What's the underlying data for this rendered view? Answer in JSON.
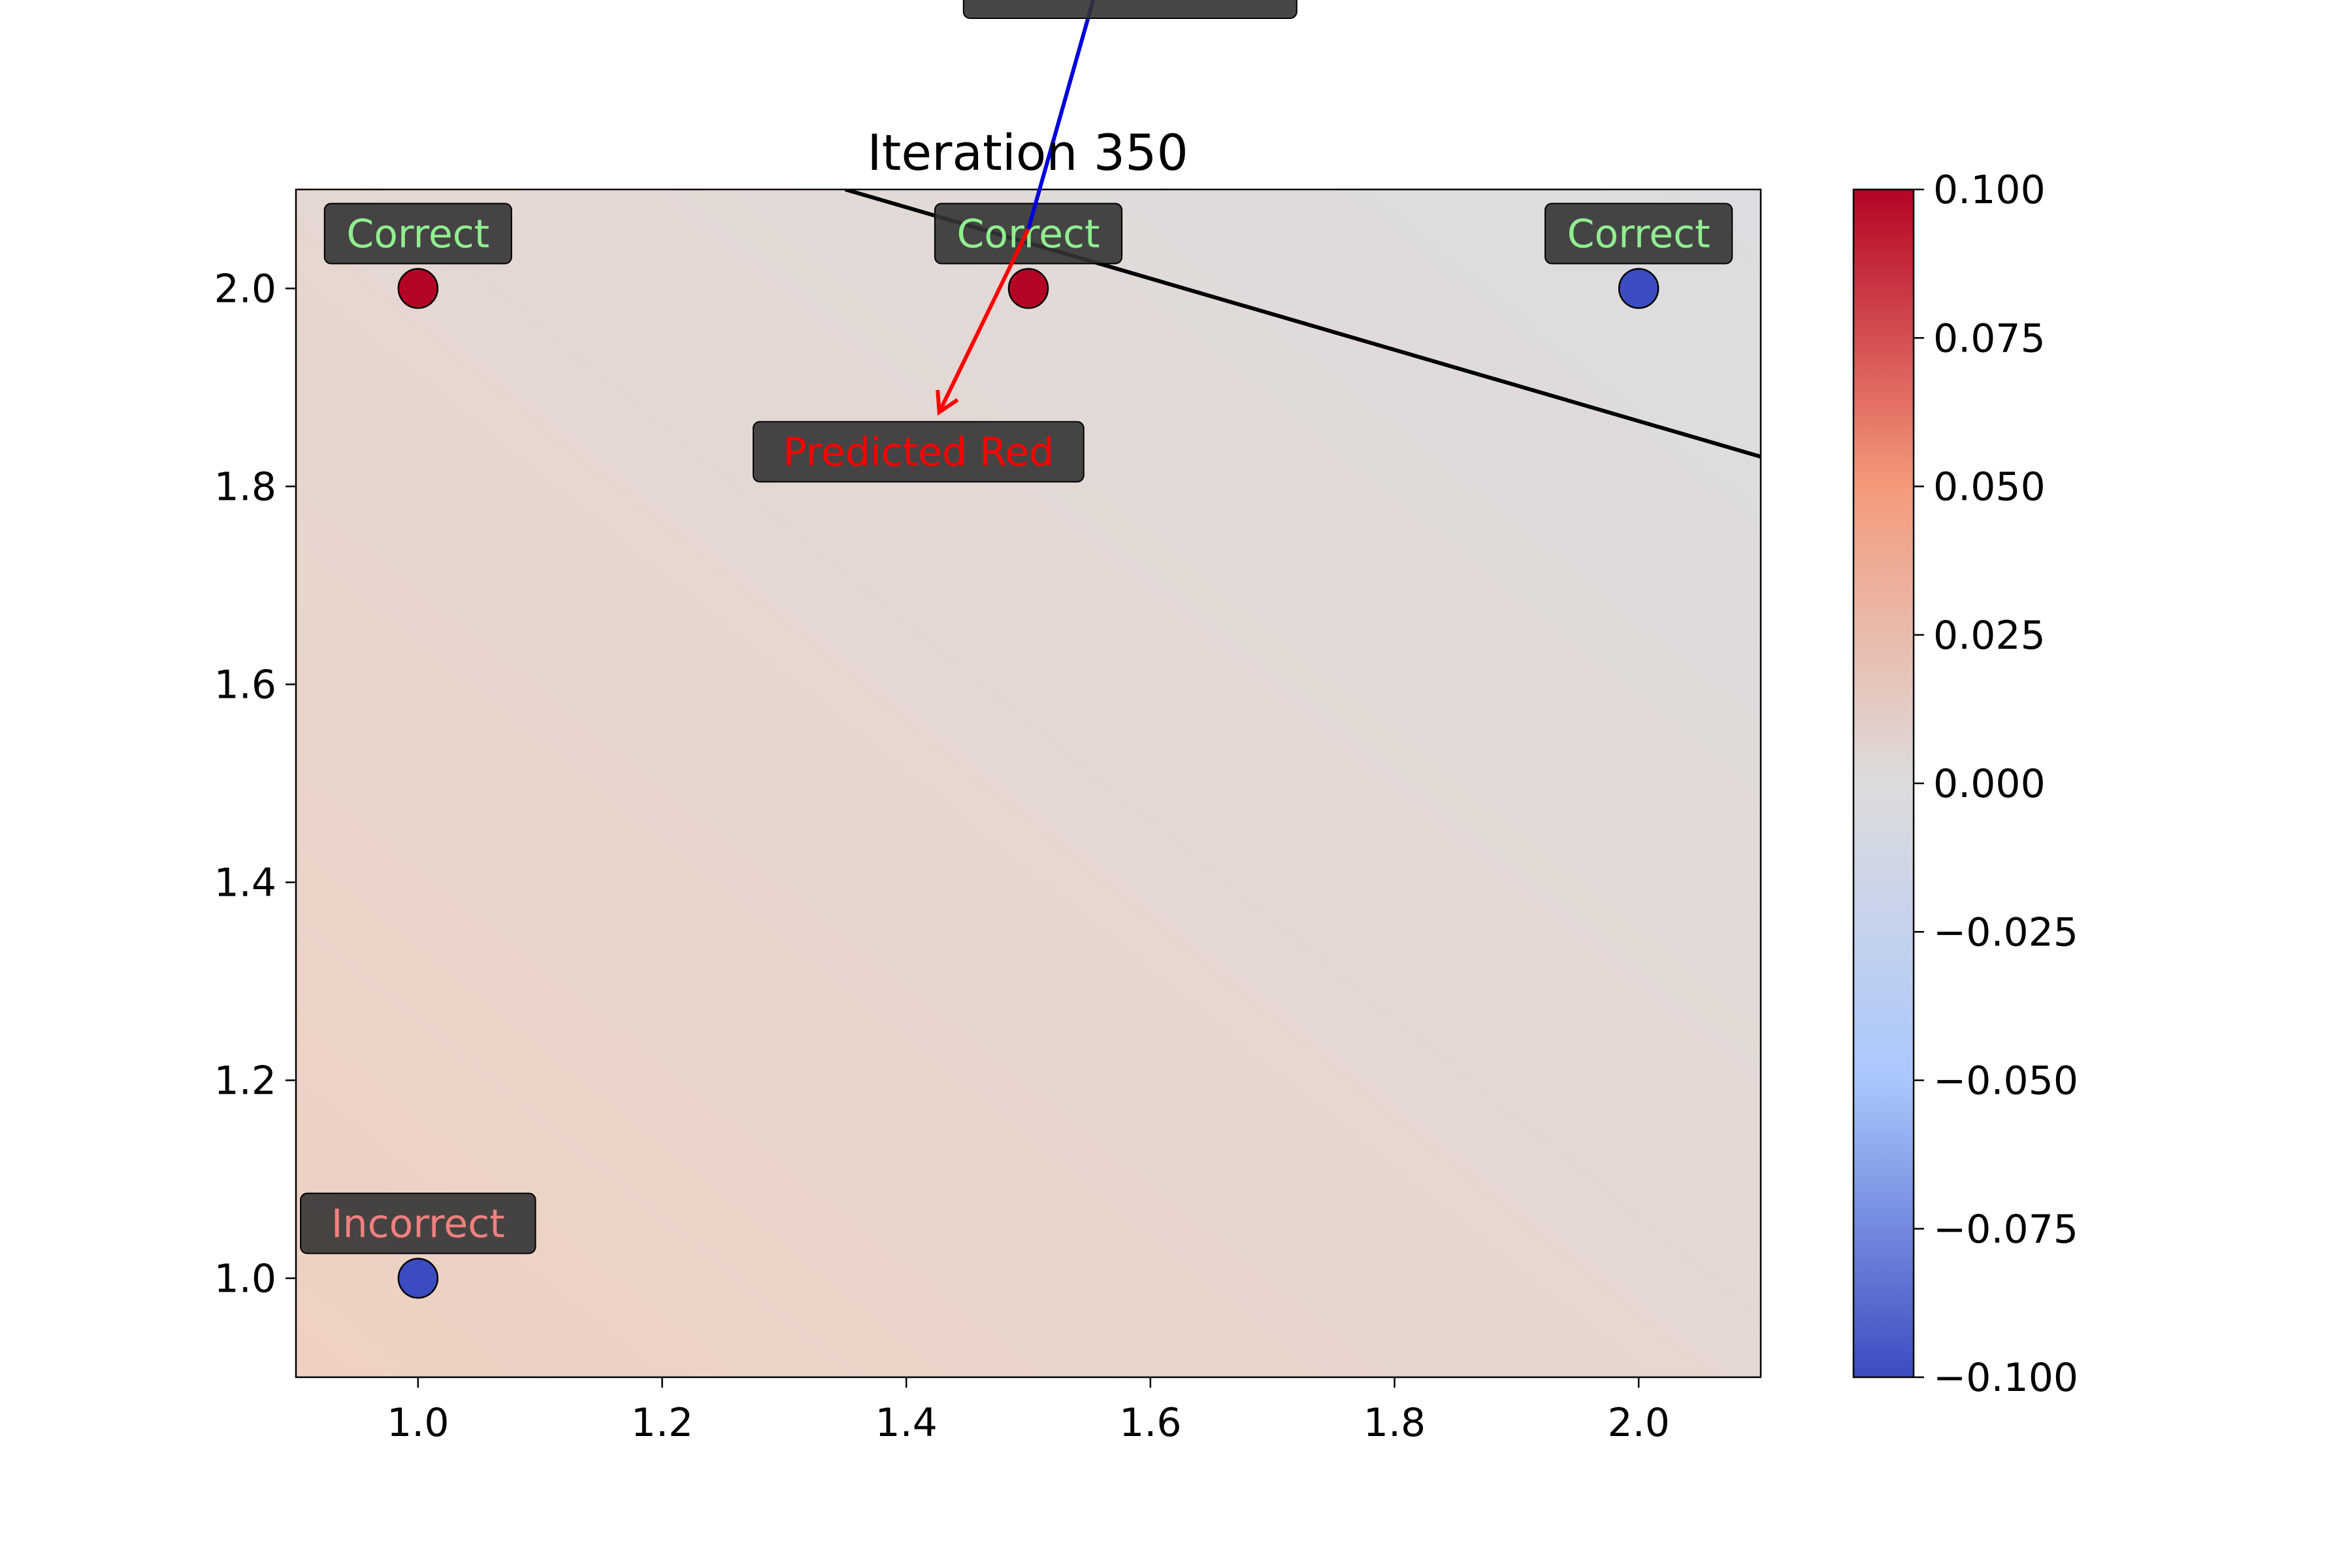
{
  "chart_data": {
    "type": "scatter",
    "title": "Iteration 350",
    "xlabel": "",
    "ylabel": "",
    "xlim": [
      0.9,
      2.1
    ],
    "ylim": [
      0.9,
      2.1
    ],
    "x_ticks": [
      1.0,
      1.2,
      1.4,
      1.6,
      1.8,
      2.0
    ],
    "x_tick_labels": [
      "1.0",
      "1.2",
      "1.4",
      "1.6",
      "1.8",
      "2.0"
    ],
    "y_ticks": [
      1.0,
      1.2,
      1.4,
      1.6,
      1.8,
      2.0
    ],
    "y_tick_labels": [
      "1.0",
      "1.2",
      "1.4",
      "1.6",
      "1.8",
      "2.0"
    ],
    "grid": false,
    "points": [
      {
        "x": 1.0,
        "y": 2.0,
        "class": "red",
        "color": "#b40426",
        "status": "Correct"
      },
      {
        "x": 1.5,
        "y": 2.0,
        "class": "red",
        "color": "#b40426",
        "status": "Correct"
      },
      {
        "x": 2.0,
        "y": 2.0,
        "class": "blue",
        "color": "#3b4cc0",
        "status": "Correct"
      },
      {
        "x": 1.0,
        "y": 1.0,
        "class": "blue",
        "color": "#3b4cc0",
        "status": "Incorrect"
      }
    ],
    "status_colors": {
      "Correct": "#90ee90",
      "Incorrect": "#f08080"
    },
    "label_box_color": "#333333",
    "decision_boundary": {
      "x": [
        1.35,
        2.1
      ],
      "y": [
        2.1,
        1.83
      ],
      "color": "#000000"
    },
    "annotations": [
      {
        "text": "Predicted Red",
        "color": "#ff0000",
        "from": [
          1.5,
          2.06
        ],
        "to": [
          1.427,
          1.875
        ],
        "label_at": [
          1.41,
          1.835
        ]
      },
      {
        "text": "",
        "color": "#0000dd",
        "from": [
          1.5,
          2.06
        ],
        "to": [
          1.57,
          2.365
        ]
      }
    ],
    "colormap": "coolwarm",
    "colorbar": {
      "vmin": -0.1,
      "vmax": 0.1,
      "ticks": [
        0.1,
        0.075,
        0.05,
        0.025,
        0.0,
        -0.025,
        -0.05,
        -0.075,
        -0.1
      ],
      "tick_labels": [
        "0.100",
        "0.075",
        "0.050",
        "0.025",
        "0.000",
        "−0.025",
        "−0.050",
        "−0.075",
        "−0.100"
      ],
      "stops": [
        "#b40426",
        "#f49a7b",
        "#dddcdc",
        "#aac7fd",
        "#3b4cc0"
      ]
    },
    "background_gradient": [
      "#dcdde0",
      "#eed1c2"
    ]
  }
}
